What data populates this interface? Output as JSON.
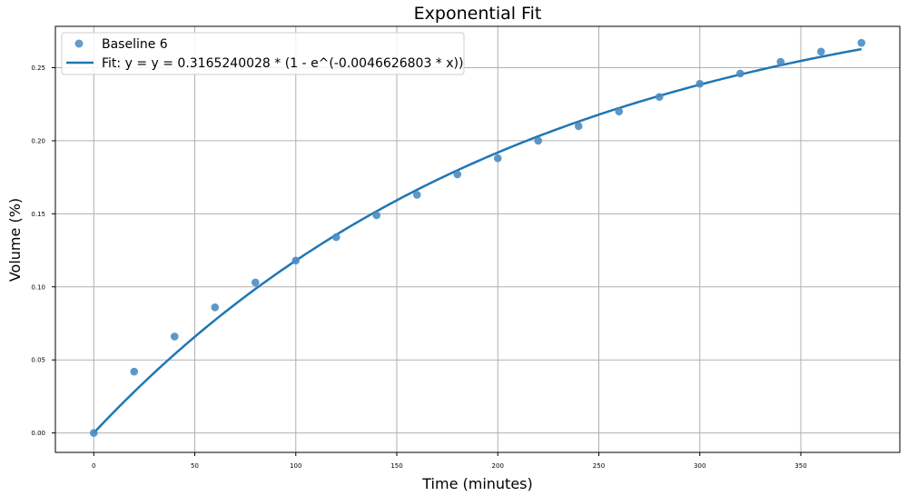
{
  "chart_data": {
    "type": "scatter",
    "title": "Exponential Fit",
    "xlabel": "Time (minutes)",
    "ylabel": "Volume (%)",
    "xlim": [
      -19,
      399
    ],
    "ylim": [
      -0.0133,
      0.2783
    ],
    "xticks": [
      0,
      50,
      100,
      150,
      200,
      250,
      300,
      350
    ],
    "yticks": [
      0.0,
      0.05,
      0.1,
      0.15,
      0.2,
      0.25
    ],
    "grid": true,
    "legend_position": "top-left",
    "series": [
      {
        "name": "Baseline 6",
        "kind": "scatter",
        "color": "#4a8cc2",
        "x": [
          0,
          20,
          40,
          60,
          80,
          100,
          120,
          140,
          160,
          180,
          200,
          220,
          240,
          260,
          280,
          300,
          320,
          340,
          360,
          380
        ],
        "y": [
          0.0,
          0.042,
          0.066,
          0.086,
          0.103,
          0.118,
          0.134,
          0.149,
          0.163,
          0.177,
          0.188,
          0.2,
          0.21,
          0.22,
          0.23,
          0.239,
          0.246,
          0.254,
          0.261,
          0.267
        ]
      },
      {
        "name": "Fit: y = y = 0.3165240028 * (1 - e^(-0.0046626803 * x))",
        "kind": "line",
        "color": "#1f77b4",
        "a": 0.3165240028,
        "b": 0.0046626803,
        "x_range": [
          0,
          380
        ]
      }
    ]
  }
}
